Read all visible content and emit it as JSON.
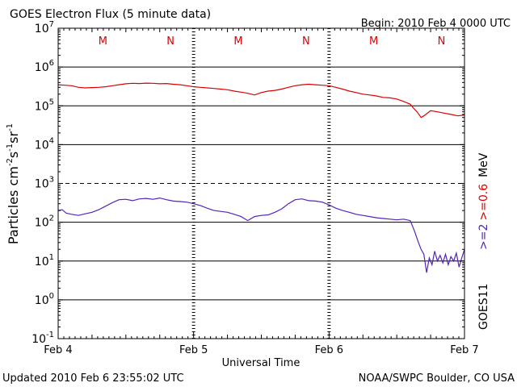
{
  "chart_data": {
    "type": "line",
    "title": "GOES Electron Flux (5 minute data)",
    "begin_label": "Begin: 2010 Feb 4 0000 UTC",
    "xlabel": "Universal Time",
    "ylabel_main": "Particles cm",
    "ylabel_exp1": "-2",
    "ylabel_s": "s",
    "ylabel_exp2": "-1",
    "ylabel_sr": "sr",
    "ylabel_exp3": "-1",
    "x_ticks": [
      {
        "day": 0,
        "label": "Feb 4"
      },
      {
        "day": 1,
        "label": "Feb 5"
      },
      {
        "day": 2,
        "label": "Feb 6"
      },
      {
        "day": 3,
        "label": "Feb 7"
      }
    ],
    "xlim": [
      0,
      3
    ],
    "y_scale": "log",
    "ylim": [
      0.1,
      10000000
    ],
    "y_ticks": [
      {
        "base": "10",
        "exp": "7",
        "value": 10000000
      },
      {
        "base": "10",
        "exp": "6",
        "value": 1000000
      },
      {
        "base": "10",
        "exp": "5",
        "value": 100000
      },
      {
        "base": "10",
        "exp": "4",
        "value": 10000
      },
      {
        "base": "10",
        "exp": "3",
        "value": 1000
      },
      {
        "base": "10",
        "exp": "2",
        "value": 100
      },
      {
        "base": "10",
        "exp": "1",
        "value": 10
      },
      {
        "base": "10",
        "exp": "0",
        "value": 1
      },
      {
        "base": "10",
        "exp": "-1",
        "value": 0.1
      }
    ],
    "hlines": [
      {
        "value": 1000000,
        "style": "solid"
      },
      {
        "value": 100000,
        "style": "solid"
      },
      {
        "value": 10000,
        "style": "solid"
      },
      {
        "value": 1000,
        "style": "dashed"
      },
      {
        "value": 100,
        "style": "solid"
      },
      {
        "value": 10,
        "style": "solid"
      },
      {
        "value": 1,
        "style": "solid"
      }
    ],
    "day_dividers": [
      1,
      2
    ],
    "mn_markers": [
      {
        "label": "M",
        "day": 0.33,
        "color": "#dd0000"
      },
      {
        "label": "N",
        "day": 0.83,
        "color": "#dd0000"
      },
      {
        "label": "M",
        "day": 1.33,
        "color": "#dd0000"
      },
      {
        "label": "N",
        "day": 1.83,
        "color": "#dd0000"
      },
      {
        "label": "M",
        "day": 2.33,
        "color": "#dd0000"
      },
      {
        "label": "N",
        "day": 2.83,
        "color": "#dd0000"
      }
    ],
    "right_labels": {
      "satellite": "GOES11",
      "energy_red": ">=0.6",
      "energy_purple": ">=2",
      "unit": "MeV"
    },
    "series": [
      {
        "name": ">=0.6 MeV",
        "color": "#dd0000",
        "x": [
          0,
          0.05,
          0.1,
          0.15,
          0.2,
          0.25,
          0.3,
          0.35,
          0.4,
          0.45,
          0.5,
          0.55,
          0.6,
          0.65,
          0.7,
          0.75,
          0.8,
          0.85,
          0.9,
          0.95,
          1.0,
          1.05,
          1.1,
          1.15,
          1.2,
          1.25,
          1.3,
          1.35,
          1.4,
          1.45,
          1.5,
          1.55,
          1.6,
          1.65,
          1.7,
          1.75,
          1.8,
          1.85,
          1.9,
          1.95,
          2.0,
          2.05,
          2.1,
          2.15,
          2.2,
          2.25,
          2.3,
          2.35,
          2.4,
          2.45,
          2.5,
          2.55,
          2.6,
          2.62,
          2.65,
          2.68,
          2.7,
          2.75,
          2.8,
          2.85,
          2.9,
          2.95,
          3.0
        ],
        "y": [
          350000,
          340000,
          330000,
          300000,
          290000,
          295000,
          300000,
          310000,
          330000,
          350000,
          370000,
          380000,
          375000,
          385000,
          380000,
          370000,
          375000,
          360000,
          350000,
          330000,
          310000,
          300000,
          290000,
          280000,
          270000,
          260000,
          240000,
          225000,
          210000,
          190000,
          220000,
          240000,
          250000,
          270000,
          300000,
          330000,
          350000,
          360000,
          350000,
          340000,
          330000,
          300000,
          270000,
          240000,
          220000,
          200000,
          190000,
          180000,
          165000,
          160000,
          150000,
          130000,
          110000,
          90000,
          70000,
          50000,
          55000,
          75000,
          70000,
          65000,
          60000,
          55000,
          58000
        ]
      },
      {
        "name": ">=2 MeV",
        "color": "#5522bb",
        "x": [
          0,
          0.03,
          0.06,
          0.1,
          0.15,
          0.2,
          0.25,
          0.3,
          0.35,
          0.4,
          0.45,
          0.5,
          0.55,
          0.6,
          0.65,
          0.7,
          0.75,
          0.8,
          0.85,
          0.9,
          0.95,
          1.0,
          1.05,
          1.1,
          1.15,
          1.2,
          1.25,
          1.3,
          1.35,
          1.4,
          1.45,
          1.5,
          1.55,
          1.6,
          1.65,
          1.7,
          1.75,
          1.8,
          1.85,
          1.9,
          1.95,
          2.0,
          2.05,
          2.1,
          2.15,
          2.2,
          2.25,
          2.3,
          2.35,
          2.4,
          2.45,
          2.5,
          2.55,
          2.6,
          2.63,
          2.66,
          2.68,
          2.7,
          2.72,
          2.74,
          2.76,
          2.78,
          2.8,
          2.82,
          2.84,
          2.86,
          2.88,
          2.9,
          2.92,
          2.94,
          2.96,
          2.98,
          3.0
        ],
        "y": [
          200,
          210,
          170,
          160,
          150,
          165,
          180,
          210,
          260,
          320,
          380,
          390,
          360,
          400,
          410,
          390,
          420,
          380,
          350,
          340,
          330,
          300,
          270,
          230,
          200,
          190,
          180,
          160,
          140,
          110,
          140,
          150,
          155,
          180,
          220,
          300,
          380,
          400,
          360,
          350,
          330,
          280,
          230,
          200,
          180,
          160,
          150,
          140,
          130,
          125,
          120,
          115,
          120,
          110,
          60,
          30,
          20,
          15,
          5,
          12,
          8,
          18,
          10,
          14,
          9,
          15,
          8,
          13,
          10,
          16,
          7,
          12,
          20
        ]
      }
    ]
  },
  "footer": {
    "updated": "Updated 2010 Feb  6 23:55:02 UTC",
    "credit": "NOAA/SWPC Boulder, CO USA"
  }
}
